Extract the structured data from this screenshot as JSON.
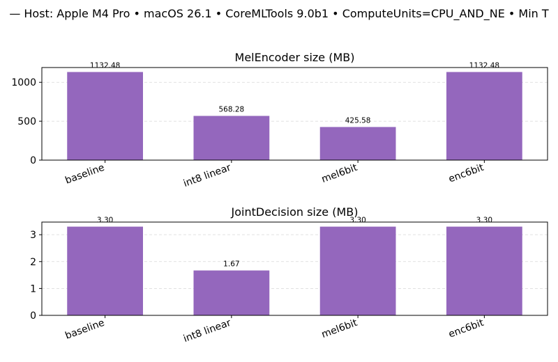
{
  "suptitle": "— Host: Apple M4 Pro • macOS 26.1 • CoreMLTools 9.0b1 • ComputeUnits=CPU_AND_NE • Min T",
  "bar_color": "#9467bd",
  "chart_data": [
    {
      "type": "bar",
      "title": "MelEncoder size (MB)",
      "categories": [
        "baseline",
        "int8 linear",
        "mel6bit",
        "enc6bit"
      ],
      "values": [
        1132.48,
        568.28,
        425.58,
        1132.48
      ],
      "value_labels": [
        "1132.48",
        "568.28",
        "425.58",
        "1132.48"
      ],
      "ylim": [
        0,
        1190
      ],
      "yticks": [
        0,
        500,
        1000
      ],
      "grid": "y-dashed"
    },
    {
      "type": "bar",
      "title": "JointDecision size (MB)",
      "categories": [
        "baseline",
        "int8 linear",
        "mel6bit",
        "enc6bit"
      ],
      "values": [
        3.3,
        1.67,
        3.3,
        3.3
      ],
      "value_labels": [
        "3.30",
        "1.67",
        "3.30",
        "3.30"
      ],
      "ylim": [
        0,
        3.47
      ],
      "yticks": [
        0,
        1,
        2,
        3
      ],
      "grid": "y-dashed"
    }
  ]
}
